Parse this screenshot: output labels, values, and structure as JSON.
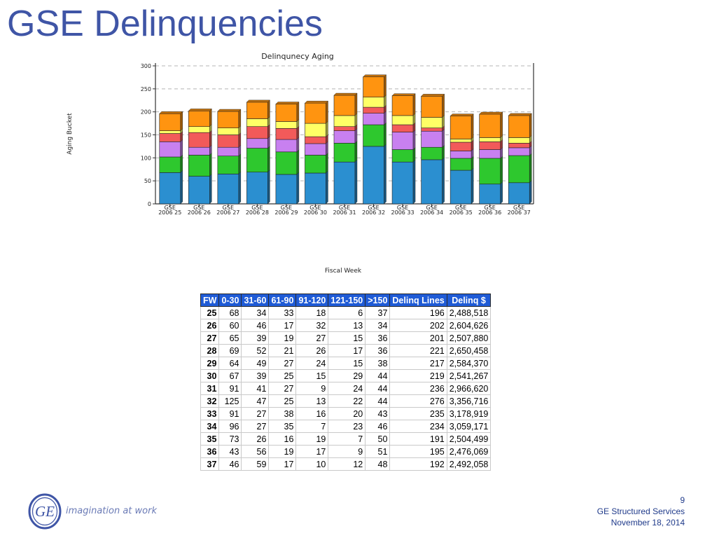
{
  "slide": {
    "title": "GSE Delinquencies"
  },
  "footer": {
    "page_number": "9",
    "company": "GE Structured Services",
    "date": "November 18, 2014",
    "tagline": "imagination at work",
    "logo_text": "GE"
  },
  "chart_data": {
    "type": "bar",
    "stacked": true,
    "title": "Delinqunecy Aging",
    "xlabel": "Fiscal Week",
    "ylabel": "Aging Bucket",
    "ylim": [
      0,
      300
    ],
    "yticks": [
      0,
      50,
      100,
      150,
      200,
      250,
      300
    ],
    "grid": true,
    "categories": [
      "GSE 2006 25",
      "GSE 2006 26",
      "GSE 2006 27",
      "GSE 2006 28",
      "GSE 2006 29",
      "GSE 2006 30",
      "GSE 2006 31",
      "GSE 2006 32",
      "GSE 2006 33",
      "GSE 2006 34",
      "GSE 2006 35",
      "GSE 2006 36",
      "GSE 2006 37"
    ],
    "category_lines": [
      [
        "GSE",
        "2006 25"
      ],
      [
        "GSE",
        "2006 26"
      ],
      [
        "GSE",
        "2006 27"
      ],
      [
        "GSE",
        "2006 28"
      ],
      [
        "GSE",
        "2006 29"
      ],
      [
        "GSE",
        "2006 30"
      ],
      [
        "GSE",
        "2006 31"
      ],
      [
        "GSE",
        "2006 32"
      ],
      [
        "GSE",
        "2006 33"
      ],
      [
        "GSE",
        "2006 34"
      ],
      [
        "GSE",
        "2006 35"
      ],
      [
        "GSE",
        "2006 36"
      ],
      [
        "GSE",
        "2006 37"
      ]
    ],
    "series": [
      {
        "values": [
          68,
          60,
          65,
          69,
          64,
          67,
          91,
          125,
          91,
          96,
          73,
          43,
          46
        ],
        "color": "#2b8fd0"
      },
      {
        "values": [
          34,
          46,
          39,
          52,
          49,
          39,
          41,
          47,
          27,
          27,
          26,
          56,
          59
        ],
        "color": "#2ec82e"
      },
      {
        "values": [
          33,
          17,
          19,
          21,
          27,
          25,
          27,
          25,
          38,
          35,
          16,
          19,
          17
        ],
        "color": "#c880f0"
      },
      {
        "values": [
          18,
          32,
          27,
          26,
          24,
          15,
          9,
          13,
          16,
          7,
          19,
          17,
          10
        ],
        "color": "#f25a5a"
      },
      {
        "values": [
          6,
          13,
          15,
          17,
          15,
          29,
          24,
          22,
          20,
          23,
          7,
          9,
          12
        ],
        "color": "#ffff66"
      },
      {
        "values": [
          37,
          34,
          36,
          36,
          38,
          44,
          44,
          44,
          43,
          46,
          50,
          51,
          48
        ],
        "color": "#ff9410"
      }
    ]
  },
  "table": {
    "headers": [
      "FW",
      "0-30",
      "31-60",
      "61-90",
      "91-120",
      "121-150",
      ">150",
      "Delinq Lines",
      "Delinq $"
    ],
    "rows": [
      [
        "25",
        "68",
        "34",
        "33",
        "18",
        "6",
        "37",
        "196",
        "2,488,518"
      ],
      [
        "26",
        "60",
        "46",
        "17",
        "32",
        "13",
        "34",
        "202",
        "2,604,626"
      ],
      [
        "27",
        "65",
        "39",
        "19",
        "27",
        "15",
        "36",
        "201",
        "2,507,880"
      ],
      [
        "28",
        "69",
        "52",
        "21",
        "26",
        "17",
        "36",
        "221",
        "2,650,458"
      ],
      [
        "29",
        "64",
        "49",
        "27",
        "24",
        "15",
        "38",
        "217",
        "2,584,370"
      ],
      [
        "30",
        "67",
        "39",
        "25",
        "15",
        "29",
        "44",
        "219",
        "2,541,267"
      ],
      [
        "31",
        "91",
        "41",
        "27",
        "9",
        "24",
        "44",
        "236",
        "2,966,620"
      ],
      [
        "32",
        "125",
        "47",
        "25",
        "13",
        "22",
        "44",
        "276",
        "3,356,716"
      ],
      [
        "33",
        "91",
        "27",
        "38",
        "16",
        "20",
        "43",
        "235",
        "3,178,919"
      ],
      [
        "34",
        "96",
        "27",
        "35",
        "7",
        "23",
        "46",
        "234",
        "3,059,171"
      ],
      [
        "35",
        "73",
        "26",
        "16",
        "19",
        "7",
        "50",
        "191",
        "2,504,499"
      ],
      [
        "36",
        "43",
        "56",
        "19",
        "17",
        "9",
        "51",
        "195",
        "2,476,069"
      ],
      [
        "37",
        "46",
        "59",
        "17",
        "10",
        "12",
        "48",
        "192",
        "2,492,058"
      ]
    ]
  }
}
